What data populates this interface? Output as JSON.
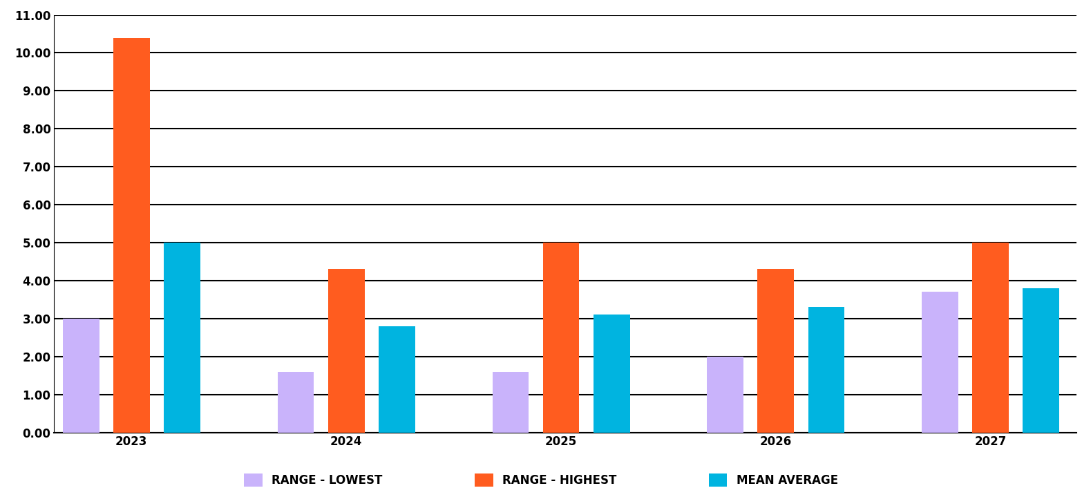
{
  "chart_data": {
    "type": "bar",
    "categories": [
      "2023",
      "2024",
      "2025",
      "2026",
      "2027"
    ],
    "series": [
      {
        "name": "RANGE - LOWEST",
        "color": "#c9b3fb",
        "values": [
          3.0,
          1.6,
          1.6,
          2.0,
          3.7
        ]
      },
      {
        "name": "RANGE - HIGHEST",
        "color": "#ff5c1f",
        "values": [
          10.4,
          4.3,
          5.0,
          4.3,
          5.0
        ]
      },
      {
        "name": "MEAN AVERAGE",
        "color": "#00b4e0",
        "values": [
          5.0,
          2.8,
          3.1,
          3.3,
          3.8
        ]
      }
    ],
    "ylim": [
      0,
      11
    ],
    "yticks": [
      {
        "value": 0,
        "label": "0.00"
      },
      {
        "value": 1,
        "label": "1.00"
      },
      {
        "value": 2,
        "label": "2.00"
      },
      {
        "value": 3,
        "label": "3.00"
      },
      {
        "value": 4,
        "label": "4.00"
      },
      {
        "value": 5,
        "label": "5.00"
      },
      {
        "value": 6,
        "label": "6.00"
      },
      {
        "value": 7,
        "label": "7.00"
      },
      {
        "value": 8,
        "label": "8.00"
      },
      {
        "value": 9,
        "label": "9.00"
      },
      {
        "value": 10,
        "label": "10.00"
      },
      {
        "value": 11,
        "label": "11.00"
      }
    ],
    "grid": true,
    "legend": "lower center"
  }
}
